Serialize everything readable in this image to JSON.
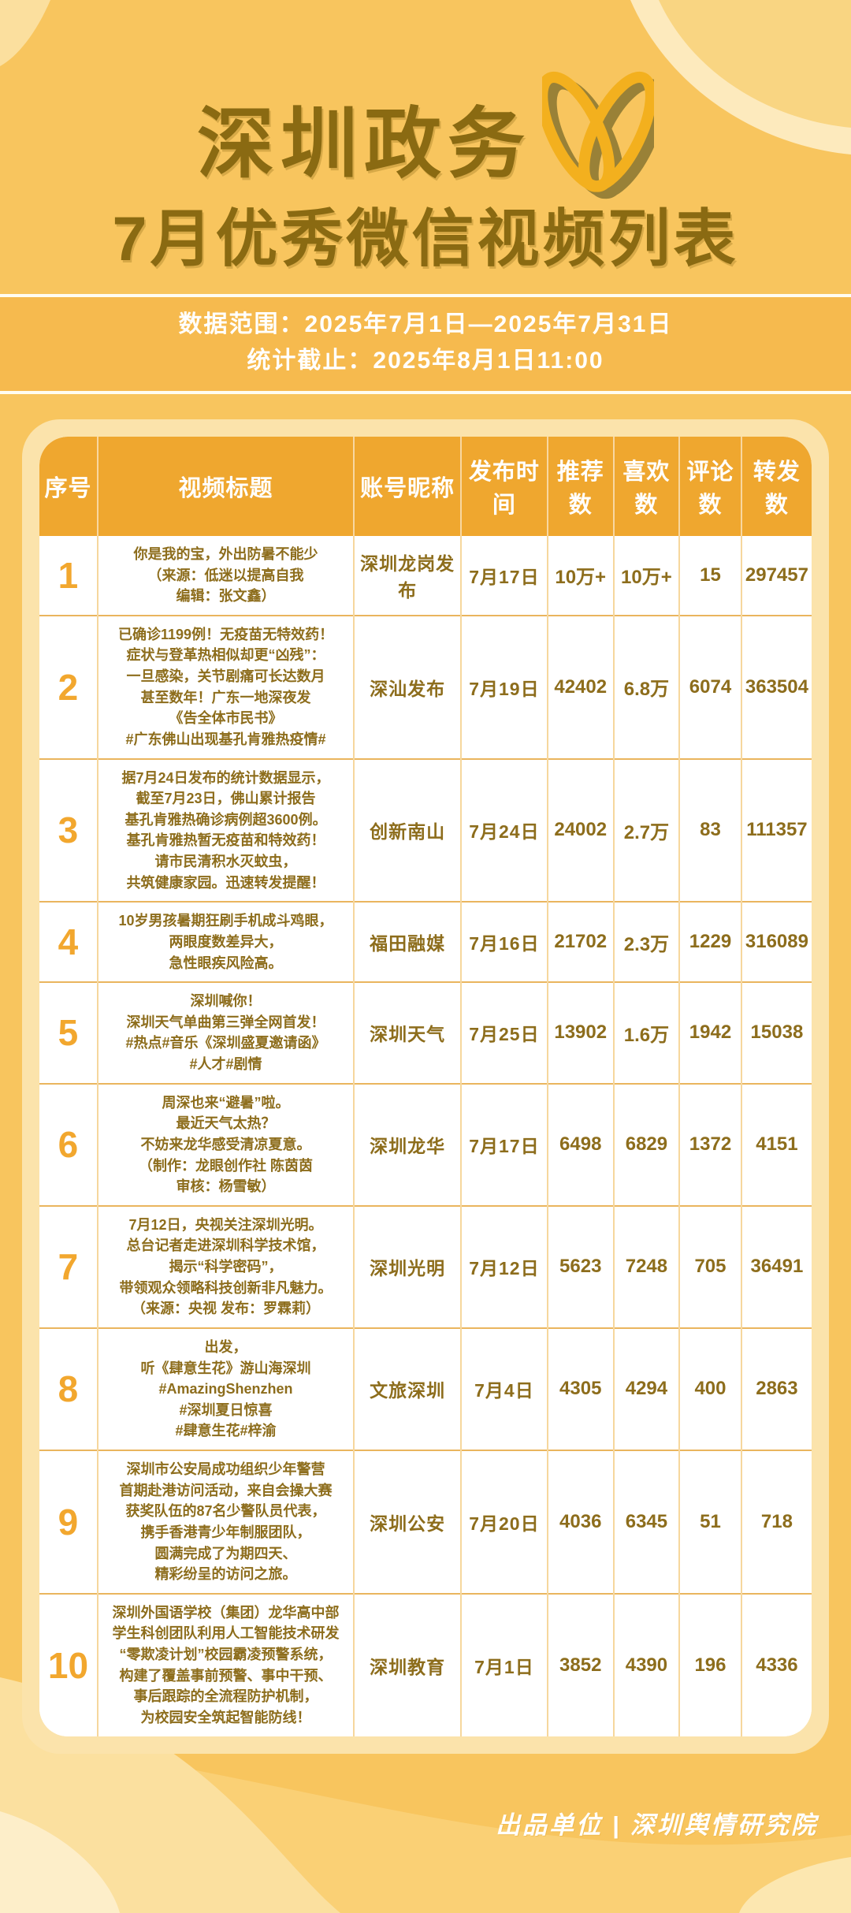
{
  "colors": {
    "background": "#f8c55e",
    "band": "#f6ba4e",
    "panel": "#fbe3ab",
    "accent_header": "#efa72f",
    "title_text": "#8a6a12",
    "body_text": "#8d6d1c",
    "row_number": "#f2a72e",
    "white": "#ffffff"
  },
  "header": {
    "title_line1": "深圳政务",
    "title_line2": "7月优秀微信视频列表",
    "logo": "wechat-channels-logo"
  },
  "stats": {
    "data_range": "数据范围：2025年7月1日—2025年7月31日",
    "deadline": "统计截止：2025年8月1日11:00"
  },
  "table": {
    "headers": [
      "序号",
      "视频标题",
      "账号昵称",
      "发布时间",
      "推荐数",
      "喜欢数",
      "评论数",
      "转发数"
    ],
    "rows": [
      {
        "no": "1",
        "title": "你是我的宝，外出防暑不能少\n（来源：低迷以提高自我\n编辑：张文鑫）",
        "account": "深圳龙岗发布",
        "date": "7月17日",
        "recommends": "10万+",
        "likes": "10万+",
        "comments": "15",
        "shares": "297457"
      },
      {
        "no": "2",
        "title": "已确诊1199例！无疫苗无特效药！\n症状与登革热相似却更“凶残”：\n一旦感染，关节剧痛可长达数月\n甚至数年！广东一地深夜发\n《告全体市民书》\n#广东佛山出现基孔肯雅热疫情#",
        "account": "深汕发布",
        "date": "7月19日",
        "recommends": "42402",
        "likes": "6.8万",
        "comments": "6074",
        "shares": "363504"
      },
      {
        "no": "3",
        "title": "据7月24日发布的统计数据显示，\n截至7月23日，佛山累计报告\n基孔肯雅热确诊病例超3600例。\n基孔肯雅热暂无疫苗和特效药！\n请市民清积水灭蚊虫，\n共筑健康家园。迅速转发提醒！",
        "account": "创新南山",
        "date": "7月24日",
        "recommends": "24002",
        "likes": "2.7万",
        "comments": "83",
        "shares": "111357"
      },
      {
        "no": "4",
        "title": "10岁男孩暑期狂刷手机成斗鸡眼，\n两眼度数差异大，\n急性眼疾风险高。",
        "account": "福田融媒",
        "date": "7月16日",
        "recommends": "21702",
        "likes": "2.3万",
        "comments": "1229",
        "shares": "316089"
      },
      {
        "no": "5",
        "title": "深圳喊你！\n深圳天气单曲第三弹全网首发！\n#热点#音乐《深圳盛夏邀请函》\n#人才#剧情",
        "account": "深圳天气",
        "date": "7月25日",
        "recommends": "13902",
        "likes": "1.6万",
        "comments": "1942",
        "shares": "15038"
      },
      {
        "no": "6",
        "title": "周深也来“避暑”啦。\n最近天气太热？\n不妨来龙华感受清凉夏意。\n（制作：龙眼创作社 陈茵茵\n审核：杨雪敏）",
        "account": "深圳龙华",
        "date": "7月17日",
        "recommends": "6498",
        "likes": "6829",
        "comments": "1372",
        "shares": "4151"
      },
      {
        "no": "7",
        "title": "7月12日，央视关注深圳光明。\n总台记者走进深圳科学技术馆，\n揭示“科学密码”，\n带领观众领略科技创新非凡魅力。\n（来源：央视 发布：罗霖莉）",
        "account": "深圳光明",
        "date": "7月12日",
        "recommends": "5623",
        "likes": "7248",
        "comments": "705",
        "shares": "36491"
      },
      {
        "no": "8",
        "title": "出发，\n听《肆意生花》游山海深圳\n#AmazingShenzhen\n#深圳夏日惊喜\n#肆意生花#梓渝",
        "account": "文旅深圳",
        "date": "7月4日",
        "recommends": "4305",
        "likes": "4294",
        "comments": "400",
        "shares": "2863"
      },
      {
        "no": "9",
        "title": "深圳市公安局成功组织少年警营\n首期赴港访问活动，来自会操大赛\n获奖队伍的87名少警队员代表，\n携手香港青少年制服团队，\n圆满完成了为期四天、\n精彩纷呈的访问之旅。",
        "account": "深圳公安",
        "date": "7月20日",
        "recommends": "4036",
        "likes": "6345",
        "comments": "51",
        "shares": "718"
      },
      {
        "no": "10",
        "title": "深圳外国语学校（集团）龙华高中部\n学生科创团队利用人工智能技术研发\n“零欺凌计划”校园霸凌预警系统，\n构建了覆盖事前预警、事中干预、\n事后跟踪的全流程防护机制，\n为校园安全筑起智能防线！",
        "account": "深圳教育",
        "date": "7月1日",
        "recommends": "3852",
        "likes": "4390",
        "comments": "196",
        "shares": "4336"
      }
    ]
  },
  "footer": {
    "credit": "出品单位 | 深圳舆情研究院"
  }
}
